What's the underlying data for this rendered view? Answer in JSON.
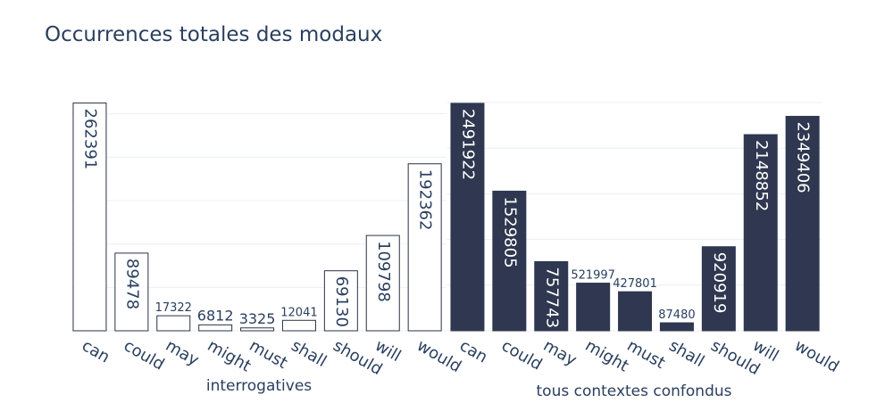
{
  "title": "Occurrences totales des modaux",
  "chart_data": [
    {
      "type": "bar",
      "title": "Occurrences totales des modaux",
      "xlabel": "interrogatives",
      "ylabel": "",
      "categories": [
        "can",
        "could",
        "may",
        "might",
        "must",
        "shall",
        "should",
        "will",
        "would"
      ],
      "values": [
        262391,
        89478,
        17322,
        6812,
        3325,
        12041,
        69130,
        109798,
        192362
      ],
      "ylim": [
        0,
        265000
      ],
      "bar_color": "#ffffff",
      "edge_color": "#2a3343",
      "text_color": "#2a3f5f",
      "grid": true
    },
    {
      "type": "bar",
      "xlabel": "tous contextes confondus",
      "ylabel": "",
      "categories": [
        "can",
        "could",
        "may",
        "might",
        "must",
        "shall",
        "should",
        "will",
        "would"
      ],
      "values": [
        2491922,
        1529805,
        757743,
        521997,
        427801,
        87480,
        920919,
        2148852,
        2349406
      ],
      "ylim": [
        0,
        2520000
      ],
      "bar_color": "#2f3850",
      "edge_color": "#2f3850",
      "text_color": "#ffffff",
      "grid": true
    }
  ]
}
